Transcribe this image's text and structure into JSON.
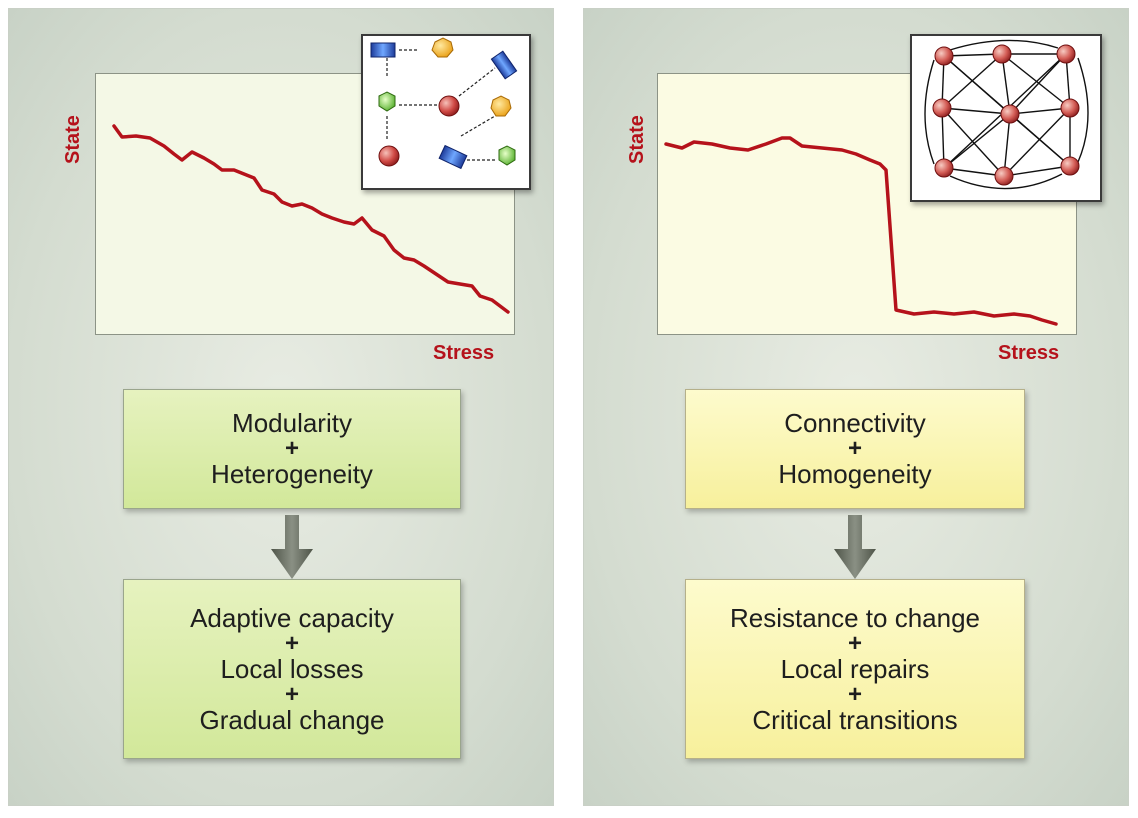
{
  "left_panel": {
    "y_label": "State",
    "x_label": "Stress",
    "top_box": [
      "Modularity",
      "+",
      "Heterogeneity"
    ],
    "bottom_box": [
      "Adaptive capacity",
      "+",
      "Local losses",
      "+",
      "Gradual change"
    ]
  },
  "right_panel": {
    "y_label": "State",
    "x_label": "Stress",
    "top_box": [
      "Connectivity",
      "+",
      "Homogeneity"
    ],
    "bottom_box": [
      "Resistance to change",
      "+",
      "Local repairs",
      "+",
      "Critical transitions"
    ]
  },
  "colors": {
    "curve": "#b5121b",
    "label": "#b5121b",
    "left_box_fill": "#d8eba6",
    "right_box_fill": "#f9f3b0",
    "arrow": "#6f7468"
  }
}
